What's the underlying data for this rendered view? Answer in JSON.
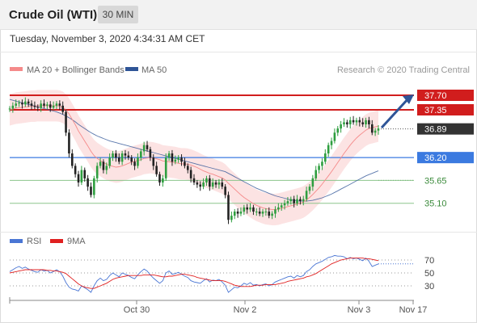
{
  "header": {
    "title": "Crude Oil (WTI)",
    "interval": "30 MIN",
    "timestamp": "Tuesday, November 3, 2020 4:34:31 AM CET"
  },
  "legend": {
    "ma20_label": "MA 20 + Bollinger Bands",
    "ma50_label": "MA 50",
    "credit": "Research © 2020 Trading Central",
    "ma20_color": "#f58a8a",
    "ma50_color": "#2f5597"
  },
  "rsi_legend": {
    "rsi_label": "RSI",
    "ma_label": "9MA",
    "rsi_color": "#4a76d4",
    "ma_color": "#e02020"
  },
  "chart_data": [
    {
      "type": "candlestick",
      "title": "Crude Oil (WTI)",
      "ylim": [
        34.55,
        38.05
      ],
      "x_ticks": [
        "Oct 30",
        "Nov 2",
        "Nov 3",
        "Nov 17"
      ],
      "last_price": 36.89,
      "levels": [
        {
          "value": 37.7,
          "label": "37.70",
          "color": "#d11d1d",
          "style": "resistance"
        },
        {
          "value": 37.35,
          "label": "37.35",
          "color": "#d11d1d",
          "style": "resistance"
        },
        {
          "value": 36.89,
          "label": "36.89",
          "color": "#333333",
          "style": "last"
        },
        {
          "value": 36.2,
          "label": "36.20",
          "color": "#3b7ae0",
          "style": "pivot"
        },
        {
          "value": 35.65,
          "label": "35.65",
          "color": "#8bc58b",
          "style": "support"
        },
        {
          "value": 35.1,
          "label": "35.10",
          "color": "#8bc58b",
          "style": "support"
        }
      ],
      "close": [
        37.38,
        37.45,
        37.5,
        37.52,
        37.48,
        37.55,
        37.5,
        37.45,
        37.42,
        37.4,
        37.5,
        37.45,
        37.48,
        37.4,
        37.45,
        37.5,
        37.45,
        37.3,
        36.8,
        36.3,
        36.0,
        35.8,
        35.6,
        35.9,
        35.7,
        35.5,
        35.3,
        35.7,
        36.0,
        36.1,
        35.9,
        36.0,
        36.2,
        36.3,
        36.2,
        36.1,
        36.3,
        36.25,
        36.2,
        36.1,
        36.0,
        36.2,
        36.35,
        36.5,
        36.4,
        36.2,
        36.0,
        35.8,
        35.6,
        35.7,
        36.2,
        36.3,
        36.1,
        36.15,
        36.2,
        36.1,
        36.0,
        35.9,
        35.7,
        35.6,
        35.55,
        35.5,
        35.6,
        35.7,
        35.5,
        35.6,
        35.55,
        35.6,
        35.5,
        35.3,
        34.7,
        34.8,
        34.9,
        34.85,
        34.9,
        35.0,
        34.95,
        35.0,
        34.9,
        34.9,
        34.85,
        34.9,
        34.9,
        34.8,
        34.85,
        34.95,
        35.0,
        35.05,
        35.1,
        35.15,
        35.2,
        35.1,
        35.2,
        35.15,
        35.2,
        35.4,
        35.5,
        35.7,
        35.9,
        36.0,
        36.1,
        36.3,
        36.5,
        36.6,
        36.8,
        36.9,
        37.0,
        37.05,
        37.0,
        37.1,
        37.05,
        37.1,
        37.05,
        37.0,
        37.1,
        37.0,
        36.8,
        36.85,
        36.9
      ],
      "ma20": [
        37.35,
        37.37,
        37.39,
        37.4,
        37.41,
        37.42,
        37.43,
        37.44,
        37.44,
        37.45,
        37.45,
        37.45,
        37.45,
        37.45,
        37.45,
        37.45,
        37.44,
        37.41,
        37.35,
        37.25,
        37.12,
        36.99,
        36.84,
        36.72,
        36.6,
        36.48,
        36.35,
        36.25,
        36.18,
        36.13,
        36.08,
        36.04,
        36.01,
        35.99,
        35.97,
        35.98,
        36.0,
        36.03,
        36.06,
        36.09,
        36.11,
        36.13,
        36.15,
        36.18,
        36.19,
        36.2,
        36.19,
        36.17,
        36.15,
        36.12,
        36.11,
        36.1,
        36.09,
        36.08,
        36.06,
        36.05,
        36.05,
        36.04,
        36.02,
        35.99,
        35.96,
        35.92,
        35.88,
        35.85,
        35.82,
        35.8,
        35.77,
        35.74,
        35.71,
        35.66,
        35.58,
        35.51,
        35.44,
        35.37,
        35.3,
        35.24,
        35.19,
        35.14,
        35.09,
        35.05,
        35.02,
        34.99,
        34.97,
        34.96,
        34.95,
        34.95,
        34.96,
        34.98,
        35.0,
        35.02,
        35.04,
        35.06,
        35.08,
        35.1,
        35.13,
        35.18,
        35.24,
        35.31,
        35.39,
        35.47,
        35.56,
        35.66,
        35.76,
        35.86,
        35.97,
        36.08,
        36.19,
        36.3,
        36.4,
        36.5,
        36.59,
        36.67,
        36.74,
        36.8,
        36.86,
        36.9,
        36.92,
        36.94,
        36.96
      ],
      "ma50": [
        37.6,
        37.58,
        37.56,
        37.54,
        37.52,
        37.5,
        37.48,
        37.46,
        37.44,
        37.42,
        37.4,
        37.38,
        37.36,
        37.34,
        37.32,
        37.3,
        37.27,
        37.24,
        37.2,
        37.16,
        37.11,
        37.06,
        37.0,
        36.95,
        36.9,
        36.85,
        36.8,
        36.76,
        36.72,
        36.69,
        36.66,
        36.63,
        36.6,
        36.58,
        36.56,
        36.54,
        36.52,
        36.5,
        36.48,
        36.46,
        36.44,
        36.42,
        36.4,
        36.38,
        36.36,
        36.34,
        36.32,
        36.3,
        36.28,
        36.26,
        36.24,
        36.22,
        36.2,
        36.18,
        36.16,
        36.14,
        36.12,
        36.1,
        36.08,
        36.06,
        36.04,
        36.02,
        36.0,
        35.98,
        35.96,
        35.94,
        35.92,
        35.9,
        35.88,
        35.86,
        35.82,
        35.78,
        35.74,
        35.7,
        35.66,
        35.62,
        35.58,
        35.54,
        35.5,
        35.46,
        35.43,
        35.4,
        35.37,
        35.34,
        35.31,
        35.28,
        35.26,
        35.24,
        35.22,
        35.2,
        35.18,
        35.17,
        35.16,
        35.15,
        35.15,
        35.15,
        35.16,
        35.17,
        35.19,
        35.21,
        35.23,
        35.26,
        35.29,
        35.32,
        35.36,
        35.4,
        35.44,
        35.48,
        35.52,
        35.56,
        35.6,
        35.64,
        35.68,
        35.72,
        35.76,
        35.79,
        35.82,
        35.85,
        35.88
      ],
      "bb_width": 0.38
    },
    {
      "type": "line",
      "title": "RSI",
      "ylim": [
        15,
        85
      ],
      "y_ticks": [
        70,
        50,
        30
      ],
      "series": [
        {
          "name": "RSI",
          "values": [
            52,
            55,
            58,
            60,
            57,
            59,
            56,
            54,
            52,
            51,
            55,
            53,
            54,
            50,
            52,
            55,
            52,
            45,
            35,
            28,
            25,
            24,
            22,
            30,
            27,
            24,
            20,
            30,
            38,
            42,
            38,
            40,
            46,
            50,
            47,
            44,
            50,
            48,
            46,
            43,
            41,
            47,
            52,
            56,
            53,
            47,
            42,
            38,
            34,
            38,
            50,
            53,
            48,
            49,
            51,
            48,
            45,
            43,
            38,
            36,
            35,
            34,
            38,
            41,
            36,
            39,
            38,
            40,
            36,
            31,
            20,
            24,
            28,
            27,
            30,
            34,
            32,
            35,
            31,
            32,
            30,
            32,
            33,
            30,
            32,
            36,
            38,
            40,
            42,
            44,
            45,
            42,
            46,
            44,
            46,
            52,
            55,
            60,
            64,
            66,
            68,
            71,
            74,
            75,
            77,
            76,
            76,
            75,
            72,
            74,
            72,
            73,
            71,
            69,
            73,
            68,
            60,
            62,
            64
          ]
        },
        {
          "name": "9MA",
          "values": [
            50,
            51,
            52,
            53,
            54,
            55,
            55,
            55,
            55,
            55,
            55,
            55,
            54,
            54,
            53,
            53,
            52,
            51,
            49,
            45,
            41,
            37,
            33,
            30,
            28,
            27,
            26,
            26,
            28,
            30,
            32,
            34,
            37,
            40,
            42,
            43,
            44,
            45,
            46,
            46,
            46,
            46,
            46,
            47,
            47,
            47,
            47,
            46,
            45,
            44,
            44,
            45,
            45,
            46,
            47,
            48,
            48,
            47,
            46,
            45,
            43,
            42,
            41,
            40,
            39,
            38,
            38,
            38,
            38,
            37,
            35,
            33,
            31,
            30,
            29,
            29,
            29,
            29,
            30,
            31,
            31,
            31,
            32,
            32,
            32,
            32,
            33,
            34,
            35,
            37,
            38,
            39,
            40,
            41,
            42,
            44,
            45,
            47,
            49,
            52,
            55,
            58,
            61,
            64,
            66,
            68,
            70,
            71,
            72,
            73,
            73,
            73,
            73,
            73,
            72,
            72,
            71,
            70,
            69
          ]
        }
      ]
    }
  ]
}
